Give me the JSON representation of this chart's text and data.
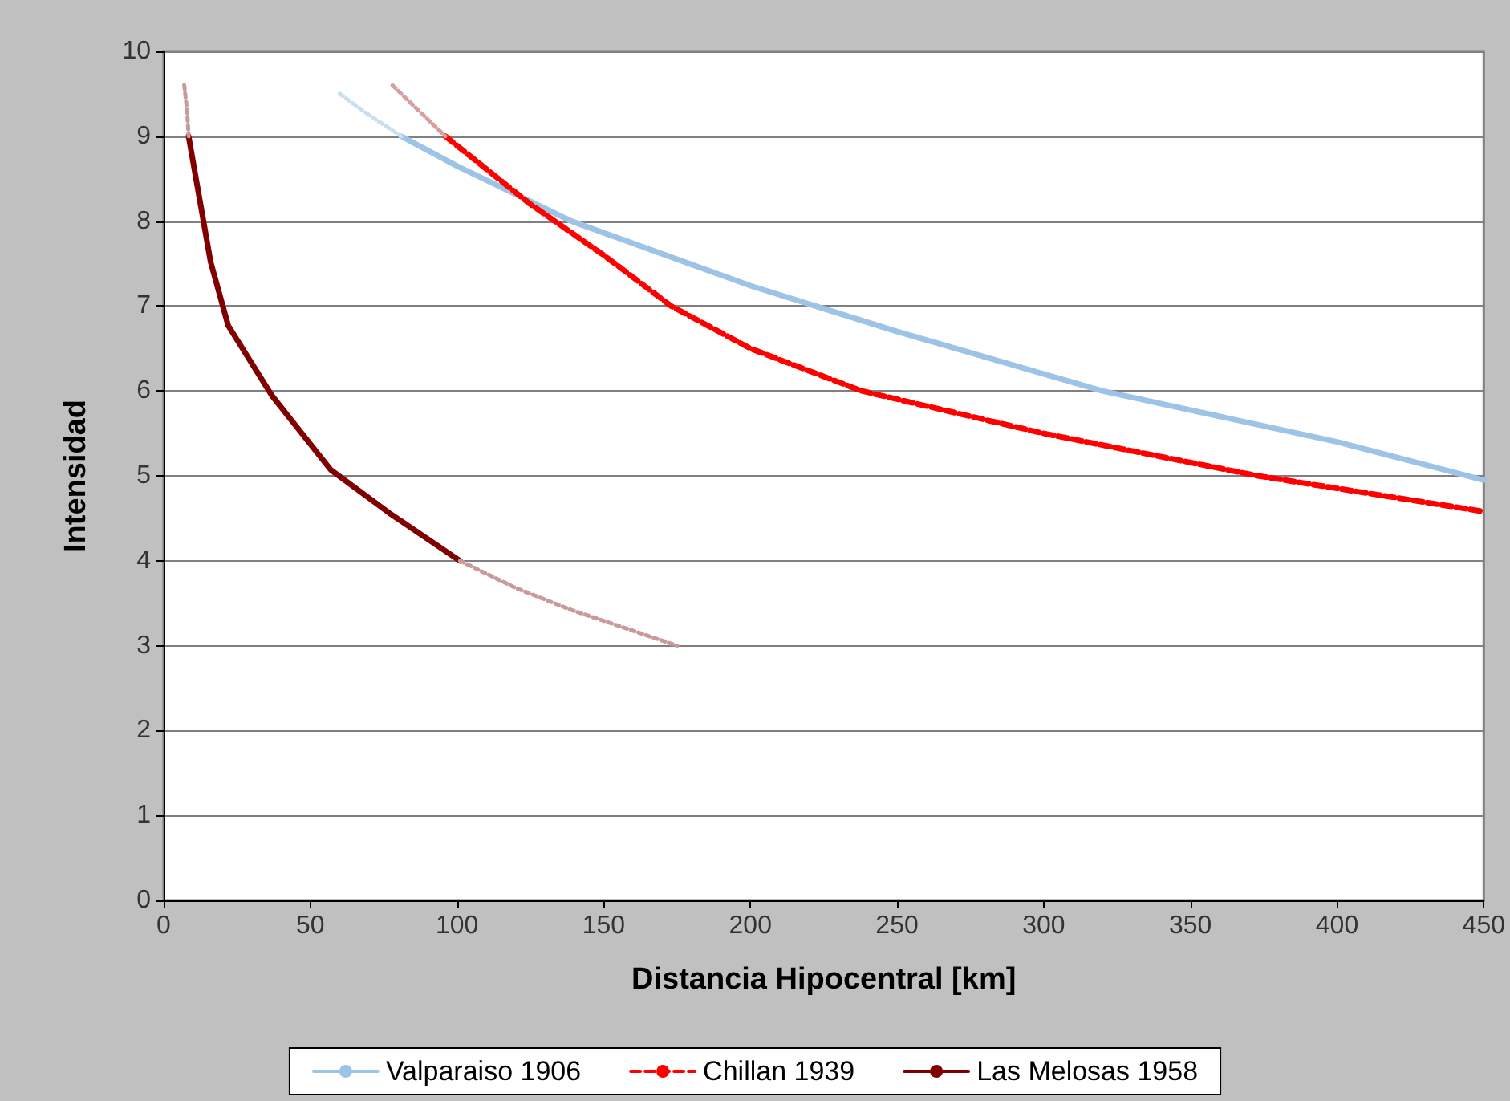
{
  "chart_data": {
    "type": "line",
    "xlabel": "Distancia Hipocentral [km]",
    "ylabel": "Intensidad",
    "xlim": [
      0,
      450
    ],
    "xticks": [
      0,
      50,
      100,
      150,
      200,
      250,
      300,
      350,
      400,
      450
    ],
    "ylim": [
      0,
      10
    ],
    "yticks": [
      0,
      1,
      2,
      3,
      4,
      5,
      6,
      7,
      8,
      9,
      10
    ],
    "grid": "y",
    "legend": "bottom",
    "marker": "none",
    "series": [
      {
        "name": "Valparaiso 1906",
        "color": "#9dc3e6",
        "line_style": "solid",
        "x": [
          81,
          100,
          139,
          200,
          250,
          320,
          400,
          450
        ],
        "values": [
          9.0,
          8.65,
          8.0,
          7.24,
          6.7,
          6.0,
          5.4,
          4.95
        ]
      },
      {
        "name": "Chillan 1939",
        "color": "#ff0000",
        "line_style": "dashed",
        "x": [
          96,
          125,
          150,
          173,
          200,
          238,
          300,
          373,
          450
        ],
        "values": [
          9.0,
          8.2,
          7.6,
          7.0,
          6.5,
          6.0,
          5.5,
          5.0,
          4.58
        ]
      },
      {
        "name": "Las Melosas 1958",
        "color": "#800000",
        "line_style": "solid",
        "x": [
          8.5,
          16,
          22,
          37,
          57,
          77,
          101
        ],
        "values": [
          9.0,
          7.52,
          6.77,
          5.94,
          5.07,
          4.56,
          4.0
        ]
      },
      {
        "color": "#c9dfee",
        "line_style": "dotted",
        "x": [
          60,
          70,
          81
        ],
        "values": [
          9.5,
          9.25,
          9.0
        ]
      },
      {
        "color": "#d4a0a0",
        "line_style": "dotted",
        "x": [
          78,
          87,
          96
        ],
        "values": [
          9.6,
          9.3,
          9.0
        ]
      },
      {
        "color": "#c89a9a",
        "line_style": "dotted",
        "x": [
          7,
          8,
          8.5
        ],
        "values": [
          9.6,
          9.3,
          9.0
        ]
      },
      {
        "color": "#c89a9a",
        "line_style": "dotted",
        "x": [
          101,
          120,
          139,
          158,
          175
        ],
        "values": [
          4.0,
          3.68,
          3.42,
          3.2,
          3.0
        ]
      }
    ]
  }
}
